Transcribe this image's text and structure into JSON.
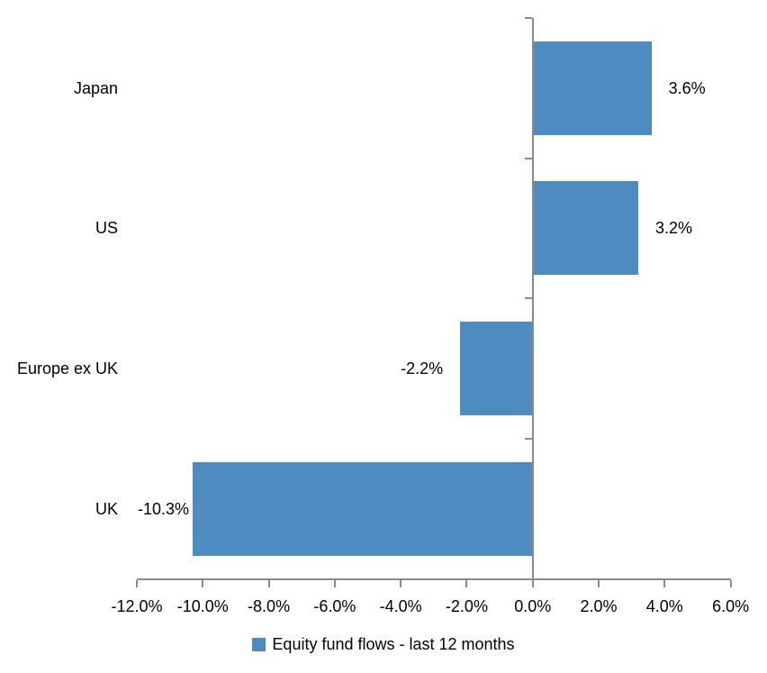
{
  "chart_data": {
    "type": "bar",
    "orientation": "horizontal",
    "title": "",
    "series_name": "Equity fund flows - last 12 months",
    "categories": [
      "Japan",
      "US",
      "Europe ex UK",
      "UK"
    ],
    "values": [
      3.6,
      3.2,
      -2.2,
      -10.3
    ],
    "data_labels": [
      "3.6%",
      "3.2%",
      "-2.2%",
      "-10.3%"
    ],
    "xlim": [
      -12,
      6
    ],
    "x_tick_step": 2,
    "x_tick_labels": [
      "-12.0%",
      "-10.0%",
      "-8.0%",
      "-6.0%",
      "-4.0%",
      "-2.0%",
      "0.0%",
      "2.0%",
      "4.0%",
      "6.0%"
    ],
    "grid": "off",
    "legend_position": "bottom",
    "bar_color": "#4E8BC0",
    "axis_color": "#8A8A8A",
    "text_color": "#000000",
    "background_color": "#FFFFFF"
  }
}
